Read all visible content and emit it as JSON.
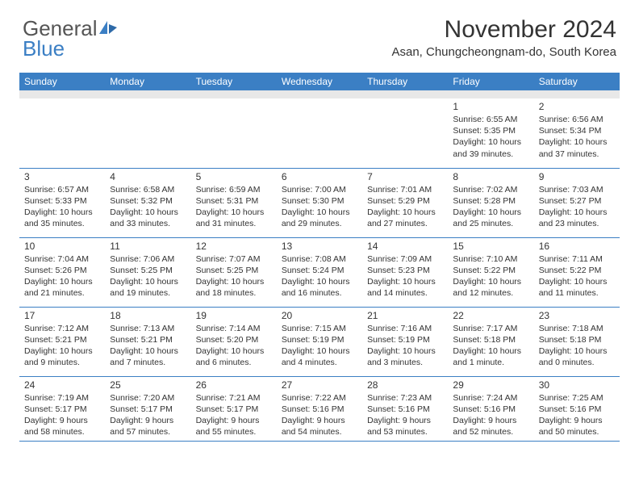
{
  "brand": {
    "name_line1": "General",
    "name_line2": "Blue",
    "color_gray": "#555555",
    "color_blue": "#3b7fc4"
  },
  "header": {
    "month_title": "November 2024",
    "location": "Asan, Chungcheongnam-do, South Korea"
  },
  "style": {
    "header_bg": "#3b7fc4",
    "header_text": "#ffffff",
    "cell_border": "#3b7fc4",
    "spacer_bg": "#e8e8e8",
    "body_text": "#333333",
    "title_fontsize": 30,
    "location_fontsize": 15,
    "dayheader_fontsize": 12,
    "datenum_fontsize": 12,
    "info_fontsize": 10.5
  },
  "day_names": [
    "Sunday",
    "Monday",
    "Tuesday",
    "Wednesday",
    "Thursday",
    "Friday",
    "Saturday"
  ],
  "weeks": [
    [
      null,
      null,
      null,
      null,
      null,
      {
        "d": "1",
        "sr": "Sunrise: 6:55 AM",
        "ss": "Sunset: 5:35 PM",
        "dl": "Daylight: 10 hours and 39 minutes."
      },
      {
        "d": "2",
        "sr": "Sunrise: 6:56 AM",
        "ss": "Sunset: 5:34 PM",
        "dl": "Daylight: 10 hours and 37 minutes."
      }
    ],
    [
      {
        "d": "3",
        "sr": "Sunrise: 6:57 AM",
        "ss": "Sunset: 5:33 PM",
        "dl": "Daylight: 10 hours and 35 minutes."
      },
      {
        "d": "4",
        "sr": "Sunrise: 6:58 AM",
        "ss": "Sunset: 5:32 PM",
        "dl": "Daylight: 10 hours and 33 minutes."
      },
      {
        "d": "5",
        "sr": "Sunrise: 6:59 AM",
        "ss": "Sunset: 5:31 PM",
        "dl": "Daylight: 10 hours and 31 minutes."
      },
      {
        "d": "6",
        "sr": "Sunrise: 7:00 AM",
        "ss": "Sunset: 5:30 PM",
        "dl": "Daylight: 10 hours and 29 minutes."
      },
      {
        "d": "7",
        "sr": "Sunrise: 7:01 AM",
        "ss": "Sunset: 5:29 PM",
        "dl": "Daylight: 10 hours and 27 minutes."
      },
      {
        "d": "8",
        "sr": "Sunrise: 7:02 AM",
        "ss": "Sunset: 5:28 PM",
        "dl": "Daylight: 10 hours and 25 minutes."
      },
      {
        "d": "9",
        "sr": "Sunrise: 7:03 AM",
        "ss": "Sunset: 5:27 PM",
        "dl": "Daylight: 10 hours and 23 minutes."
      }
    ],
    [
      {
        "d": "10",
        "sr": "Sunrise: 7:04 AM",
        "ss": "Sunset: 5:26 PM",
        "dl": "Daylight: 10 hours and 21 minutes."
      },
      {
        "d": "11",
        "sr": "Sunrise: 7:06 AM",
        "ss": "Sunset: 5:25 PM",
        "dl": "Daylight: 10 hours and 19 minutes."
      },
      {
        "d": "12",
        "sr": "Sunrise: 7:07 AM",
        "ss": "Sunset: 5:25 PM",
        "dl": "Daylight: 10 hours and 18 minutes."
      },
      {
        "d": "13",
        "sr": "Sunrise: 7:08 AM",
        "ss": "Sunset: 5:24 PM",
        "dl": "Daylight: 10 hours and 16 minutes."
      },
      {
        "d": "14",
        "sr": "Sunrise: 7:09 AM",
        "ss": "Sunset: 5:23 PM",
        "dl": "Daylight: 10 hours and 14 minutes."
      },
      {
        "d": "15",
        "sr": "Sunrise: 7:10 AM",
        "ss": "Sunset: 5:22 PM",
        "dl": "Daylight: 10 hours and 12 minutes."
      },
      {
        "d": "16",
        "sr": "Sunrise: 7:11 AM",
        "ss": "Sunset: 5:22 PM",
        "dl": "Daylight: 10 hours and 11 minutes."
      }
    ],
    [
      {
        "d": "17",
        "sr": "Sunrise: 7:12 AM",
        "ss": "Sunset: 5:21 PM",
        "dl": "Daylight: 10 hours and 9 minutes."
      },
      {
        "d": "18",
        "sr": "Sunrise: 7:13 AM",
        "ss": "Sunset: 5:21 PM",
        "dl": "Daylight: 10 hours and 7 minutes."
      },
      {
        "d": "19",
        "sr": "Sunrise: 7:14 AM",
        "ss": "Sunset: 5:20 PM",
        "dl": "Daylight: 10 hours and 6 minutes."
      },
      {
        "d": "20",
        "sr": "Sunrise: 7:15 AM",
        "ss": "Sunset: 5:19 PM",
        "dl": "Daylight: 10 hours and 4 minutes."
      },
      {
        "d": "21",
        "sr": "Sunrise: 7:16 AM",
        "ss": "Sunset: 5:19 PM",
        "dl": "Daylight: 10 hours and 3 minutes."
      },
      {
        "d": "22",
        "sr": "Sunrise: 7:17 AM",
        "ss": "Sunset: 5:18 PM",
        "dl": "Daylight: 10 hours and 1 minute."
      },
      {
        "d": "23",
        "sr": "Sunrise: 7:18 AM",
        "ss": "Sunset: 5:18 PM",
        "dl": "Daylight: 10 hours and 0 minutes."
      }
    ],
    [
      {
        "d": "24",
        "sr": "Sunrise: 7:19 AM",
        "ss": "Sunset: 5:17 PM",
        "dl": "Daylight: 9 hours and 58 minutes."
      },
      {
        "d": "25",
        "sr": "Sunrise: 7:20 AM",
        "ss": "Sunset: 5:17 PM",
        "dl": "Daylight: 9 hours and 57 minutes."
      },
      {
        "d": "26",
        "sr": "Sunrise: 7:21 AM",
        "ss": "Sunset: 5:17 PM",
        "dl": "Daylight: 9 hours and 55 minutes."
      },
      {
        "d": "27",
        "sr": "Sunrise: 7:22 AM",
        "ss": "Sunset: 5:16 PM",
        "dl": "Daylight: 9 hours and 54 minutes."
      },
      {
        "d": "28",
        "sr": "Sunrise: 7:23 AM",
        "ss": "Sunset: 5:16 PM",
        "dl": "Daylight: 9 hours and 53 minutes."
      },
      {
        "d": "29",
        "sr": "Sunrise: 7:24 AM",
        "ss": "Sunset: 5:16 PM",
        "dl": "Daylight: 9 hours and 52 minutes."
      },
      {
        "d": "30",
        "sr": "Sunrise: 7:25 AM",
        "ss": "Sunset: 5:16 PM",
        "dl": "Daylight: 9 hours and 50 minutes."
      }
    ]
  ]
}
